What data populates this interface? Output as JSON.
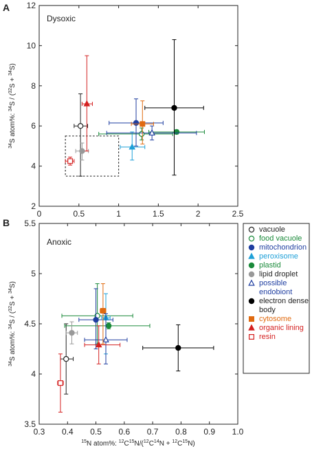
{
  "panels": {
    "A": {
      "letter": "A",
      "condition": "Dysoxic"
    },
    "B": {
      "letter": "B",
      "condition": "Anoxic"
    }
  },
  "axis_text": {
    "ylabel_prefix": "34",
    "ylabel_main": "S atom%: ",
    "ylabel_s1": "34",
    "ylabel_p1": "S",
    "ylabel_p2": " / (",
    "ylabel_s2": "32",
    "ylabel_p3": "S",
    "ylabel_p4": " + ",
    "ylabel_s3": "34",
    "ylabel_p5": "S",
    "ylabel_p6": ")",
    "xlabel_s1": "15",
    "xlabel_p1": "N atom%: ",
    "xlabel_s2": "12",
    "xlabel_p2": "C",
    "xlabel_s3": "15",
    "xlabel_p3": "N",
    "xlabel_p4": "/(",
    "xlabel_s4": "12",
    "xlabel_p5": "C",
    "xlabel_s5": "14",
    "xlabel_p6": "N",
    "xlabel_p7": " + ",
    "xlabel_s6": "12",
    "xlabel_p8": "C",
    "xlabel_s7": "15",
    "xlabel_p9": "N",
    "xlabel_p10": ")"
  },
  "legend": [
    {
      "label": "vacuole",
      "color": "#222222",
      "marker": "circle-open"
    },
    {
      "label": "food vacuole",
      "color": "#1a8a3a",
      "marker": "circle-open"
    },
    {
      "label": "mitochondrion",
      "color": "#1f3ea0",
      "marker": "circle"
    },
    {
      "label": "peroxisome",
      "color": "#1fa0d8",
      "marker": "triangle"
    },
    {
      "label": "plastid",
      "color": "#1a8a3a",
      "marker": "circle"
    },
    {
      "label": "lipid droplet",
      "color": "#999999",
      "marker": "circle"
    },
    {
      "label": "possible endobiont",
      "color": "#1f3ea0",
      "marker": "triangle-open"
    },
    {
      "label": "electron dense body",
      "color": "#000000",
      "marker": "circle"
    },
    {
      "label": "cytosome",
      "color": "#e06a10",
      "marker": "square"
    },
    {
      "label": "organic lining",
      "color": "#d42020",
      "marker": "triangle"
    },
    {
      "label": "resin",
      "color": "#d42020",
      "marker": "square-open"
    }
  ],
  "chart_data": [
    {
      "type": "scatter",
      "panel": "A",
      "xlim": [
        0,
        2.5
      ],
      "ylim": [
        2,
        12
      ],
      "xticks": [
        "0",
        "0.5",
        "1",
        "1.5",
        "2",
        "2.5"
      ],
      "yticks": [
        "2",
        "4",
        "6",
        "8",
        "10",
        "12"
      ],
      "inset_box": {
        "x": [
          0.33,
          1.0
        ],
        "y": [
          3.5,
          5.5
        ]
      },
      "series": [
        {
          "name": "vacuole",
          "x": 0.52,
          "y": 6.0,
          "xerr": [
            0.44,
            0.61
          ],
          "yerr": [
            3.5,
            7.6
          ],
          "color": "#222222",
          "marker": "circle-open"
        },
        {
          "name": "food vacuole",
          "x": 1.29,
          "y": 5.6,
          "xerr": [
            0.75,
            1.68
          ],
          "yerr": [
            5.3,
            5.9
          ],
          "color": "#1a8a3a",
          "marker": "circle-open"
        },
        {
          "name": "mitochondrion",
          "x": 1.22,
          "y": 6.15,
          "xerr": [
            0.88,
            1.56
          ],
          "yerr": [
            5.0,
            7.35
          ],
          "color": "#1f3ea0",
          "marker": "circle"
        },
        {
          "name": "peroxisome",
          "x": 1.17,
          "y": 4.95,
          "xerr": [
            1.02,
            1.33
          ],
          "yerr": [
            4.3,
            5.7
          ],
          "color": "#1fa0d8",
          "marker": "triangle"
        },
        {
          "name": "plastid",
          "x": 1.73,
          "y": 5.7,
          "xerr": [
            1.38,
            2.08
          ],
          "yerr": [
            5.6,
            5.8
          ],
          "color": "#1a8a3a",
          "marker": "circle"
        },
        {
          "name": "lipid droplet",
          "x": 0.54,
          "y": 4.75,
          "xerr": [
            0.46,
            0.62
          ],
          "yerr": [
            4.3,
            5.15
          ],
          "color": "#999999",
          "marker": "circle"
        },
        {
          "name": "possible endobiont",
          "x": 1.42,
          "y": 5.65,
          "xerr": [
            0.85,
            1.98
          ],
          "yerr": [
            5.3,
            6.0
          ],
          "color": "#1f3ea0",
          "marker": "triangle-open"
        },
        {
          "name": "electron dense body",
          "x": 1.7,
          "y": 6.9,
          "xerr": [
            1.33,
            2.07
          ],
          "yerr": [
            3.55,
            10.3
          ],
          "color": "#000000",
          "marker": "circle"
        },
        {
          "name": "cytosome",
          "x": 1.3,
          "y": 6.1,
          "xerr": [
            1.16,
            1.44
          ],
          "yerr": [
            5.1,
            7.25
          ],
          "color": "#e06a10",
          "marker": "square"
        },
        {
          "name": "organic lining",
          "x": 0.6,
          "y": 7.1,
          "xerr": [
            0.54,
            0.67
          ],
          "yerr": [
            4.75,
            9.5
          ],
          "color": "#d42020",
          "marker": "triangle"
        },
        {
          "name": "resin",
          "x": 0.39,
          "y": 4.25,
          "xerr": [
            0.33,
            0.44
          ],
          "yerr": [
            4.05,
            4.45
          ],
          "color": "#d42020",
          "marker": "square-open"
        }
      ]
    },
    {
      "type": "scatter",
      "panel": "B",
      "xlim": [
        0.3,
        1.0
      ],
      "ylim": [
        3.5,
        5.5
      ],
      "xticks": [
        "0.3",
        "0.4",
        "0.5",
        "0.6",
        "0.7",
        "0.8",
        "0.9",
        "1.0"
      ],
      "yticks": [
        "3.5",
        "4",
        "4.5",
        "5",
        "5.5"
      ],
      "series": [
        {
          "name": "vacuole",
          "x": 0.395,
          "y": 4.15,
          "xerr": [
            0.375,
            0.42
          ],
          "yerr": [
            3.8,
            4.5
          ],
          "color": "#222222",
          "marker": "circle-open"
        },
        {
          "name": "food vacuole",
          "x": 0.505,
          "y": 4.58,
          "xerr": [
            0.38,
            0.63
          ],
          "yerr": [
            4.3,
            4.9
          ],
          "color": "#1a8a3a",
          "marker": "circle-open"
        },
        {
          "name": "mitochondrion",
          "x": 0.5,
          "y": 4.54,
          "xerr": [
            0.44,
            0.56
          ],
          "yerr": [
            4.25,
            4.85
          ],
          "color": "#1f3ea0",
          "marker": "circle"
        },
        {
          "name": "peroxisome",
          "x": 0.535,
          "y": 4.56,
          "xerr": [
            0.52,
            0.55
          ],
          "yerr": [
            4.2,
            4.8
          ],
          "color": "#1fa0d8",
          "marker": "triangle"
        },
        {
          "name": "plastid",
          "x": 0.545,
          "y": 4.48,
          "xerr": [
            0.39,
            0.69
          ],
          "yerr": [
            4.45,
            4.51
          ],
          "color": "#1a8a3a",
          "marker": "circle"
        },
        {
          "name": "lipid droplet",
          "x": 0.415,
          "y": 4.41,
          "xerr": [
            0.395,
            0.435
          ],
          "yerr": [
            4.3,
            4.52
          ],
          "color": "#999999",
          "marker": "circle"
        },
        {
          "name": "possible endobiont",
          "x": 0.535,
          "y": 4.34,
          "xerr": [
            0.46,
            0.61
          ],
          "yerr": [
            4.1,
            4.6
          ],
          "color": "#1f3ea0",
          "marker": "triangle-open"
        },
        {
          "name": "electron dense body",
          "x": 0.79,
          "y": 4.26,
          "xerr": [
            0.665,
            0.915
          ],
          "yerr": [
            4.03,
            4.49
          ],
          "color": "#000000",
          "marker": "circle"
        },
        {
          "name": "cytosome",
          "x": 0.525,
          "y": 4.63,
          "xerr": [
            0.515,
            0.535
          ],
          "yerr": [
            4.3,
            4.9
          ],
          "color": "#e06a10",
          "marker": "square"
        },
        {
          "name": "organic lining",
          "x": 0.51,
          "y": 4.29,
          "xerr": [
            0.46,
            0.585
          ],
          "yerr": [
            4.1,
            4.48
          ],
          "color": "#d42020",
          "marker": "triangle"
        },
        {
          "name": "resin",
          "x": 0.375,
          "y": 3.91,
          "xerr": [
            0.365,
            0.385
          ],
          "yerr": [
            3.62,
            4.2
          ],
          "color": "#d42020",
          "marker": "square-open"
        }
      ]
    }
  ]
}
